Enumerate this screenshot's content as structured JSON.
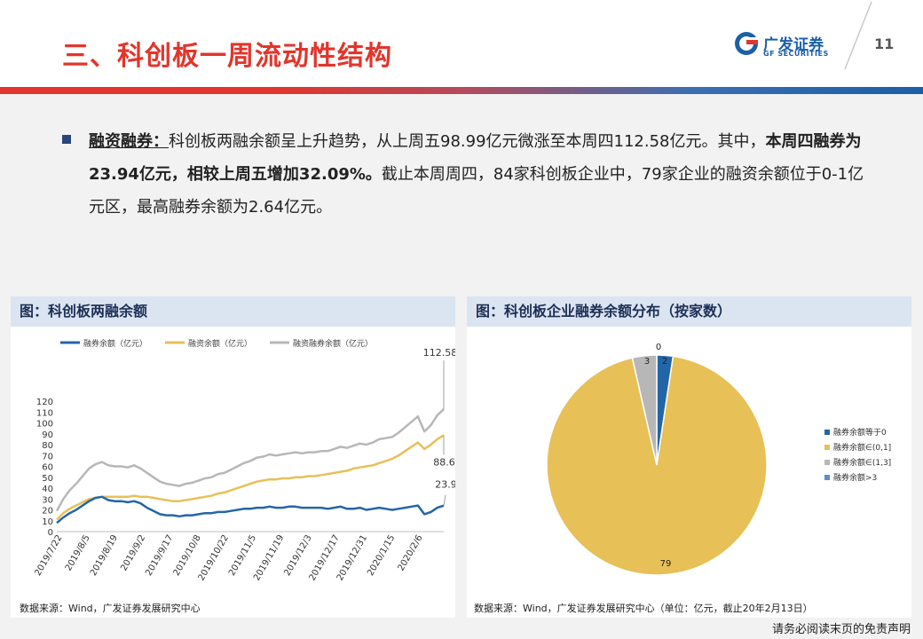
{
  "page": {
    "title": "三、科创板一周流动性结构",
    "page_number": "11",
    "logo_cn": "广发证券",
    "logo_en": "GF SECURITIES",
    "footer": "请务必阅读末页的免责声明",
    "colors": {
      "title_red": "#e2352b",
      "brand_blue": "#1b5fa8",
      "panel_head": "#dbe4f1"
    }
  },
  "summary": {
    "label": "融资融券：",
    "text1": "科创板两融余额呈上升趋势，从上周五98.99亿元微涨至本周四112.58亿元。其中，",
    "bold": "本周四融券为23.94亿元，相较上周五增加32.09%。",
    "text2": "截止本周周四，84家科创板企业中，79家企业的融资余额位于0-1亿元区，最高融券余额为2.64亿元。"
  },
  "left_panel": {
    "title": "图：科创板两融余额",
    "source": "数据来源：Wind，广发证券发展研究中心"
  },
  "right_panel": {
    "title": "图：科创板企业融券余额分布（按家数）",
    "source": "数据来源：Wind，广发证券发展研究中心（单位：亿元，截止20年2月13日）"
  },
  "chart_data": [
    {
      "type": "line",
      "title": "",
      "xlabel": "",
      "ylabel": "",
      "ylim": [
        0,
        120
      ],
      "yticks": [
        0,
        10,
        20,
        30,
        40,
        50,
        60,
        70,
        80,
        90,
        100,
        110,
        120
      ],
      "x_tick_labels": [
        "2019/7/22",
        "2019/8/5",
        "2019/8/19",
        "2019/9/2",
        "2019/9/17",
        "2019/10/8",
        "2019/10/22",
        "2019/11/5",
        "2019/11/19",
        "2019/12/3",
        "2019/12/17",
        "2019/12/31",
        "2020/1/15",
        "2020/2/6"
      ],
      "legend_position": "top",
      "end_labels": [
        "112.58",
        "88.64",
        "23.94"
      ],
      "series": [
        {
          "name": "融券余额（亿元）",
          "color": "#2366a8",
          "values": [
            8,
            13,
            17,
            20,
            24,
            28,
            31,
            32,
            29,
            28,
            28,
            27,
            28,
            26,
            22,
            19,
            16,
            15,
            15,
            14,
            15,
            15,
            16,
            17,
            17,
            18,
            18,
            19,
            20,
            21,
            21,
            22,
            22,
            23,
            22,
            22,
            23,
            23,
            22,
            22,
            22,
            22,
            21,
            22,
            23,
            21,
            21,
            22,
            20,
            21,
            22,
            21,
            20,
            21,
            22,
            23,
            24,
            16,
            18,
            22,
            23.94
          ]
        },
        {
          "name": "融资余额（亿元）",
          "color": "#e8c058",
          "values": [
            11,
            17,
            21,
            24,
            27,
            30,
            31,
            32,
            32,
            32,
            32,
            32,
            33,
            32,
            32,
            31,
            30,
            29,
            28,
            28,
            29,
            30,
            31,
            32,
            33,
            35,
            36,
            38,
            40,
            42,
            44,
            46,
            47,
            48,
            48,
            49,
            49,
            50,
            50,
            51,
            51,
            52,
            53,
            54,
            55,
            56,
            58,
            59,
            60,
            61,
            63,
            65,
            67,
            70,
            74,
            78,
            82,
            76,
            80,
            85,
            88.64
          ]
        },
        {
          "name": "融资融券余额（亿元）",
          "color": "#b7b7b7",
          "values": [
            19,
            30,
            38,
            44,
            51,
            58,
            62,
            64,
            61,
            60,
            60,
            59,
            61,
            58,
            54,
            50,
            46,
            44,
            43,
            42,
            44,
            45,
            47,
            49,
            50,
            53,
            54,
            57,
            60,
            63,
            65,
            68,
            69,
            71,
            70,
            71,
            72,
            73,
            72,
            73,
            73,
            74,
            74,
            76,
            78,
            77,
            79,
            81,
            80,
            82,
            85,
            86,
            87,
            91,
            96,
            101,
            106,
            92,
            98,
            107,
            112.58
          ]
        }
      ]
    },
    {
      "type": "pie",
      "title": "",
      "categories": [
        "融券余额等于0",
        "融券余额∈(0,1]",
        "融券余额∈(1,3]",
        "融券余额>3"
      ],
      "values": [
        2,
        79,
        3,
        0
      ],
      "colors": [
        "#2366a8",
        "#e8c058",
        "#b7b7b7",
        "#5b8fc7"
      ],
      "legend_position": "right"
    }
  ]
}
